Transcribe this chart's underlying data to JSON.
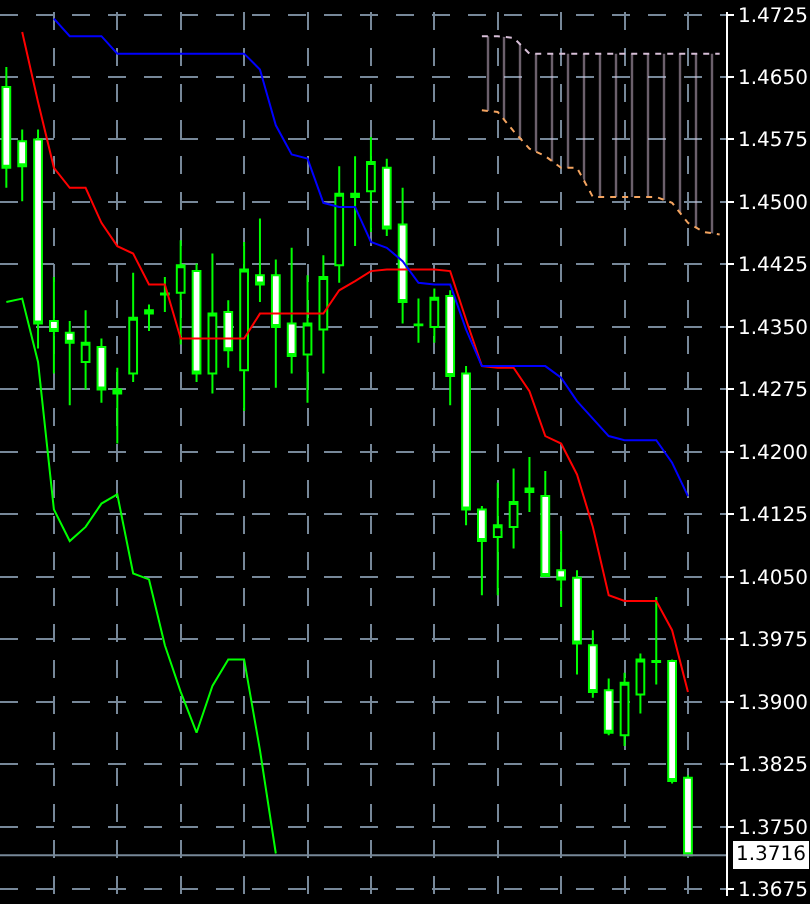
{
  "chart_data": {
    "type": "candlestick",
    "categories": [
      null,
      null,
      null,
      null,
      null,
      null,
      null,
      null,
      null,
      null,
      null,
      null,
      null,
      null,
      null,
      null,
      null,
      null,
      null,
      null,
      null,
      null,
      null,
      null,
      null,
      null,
      null,
      null,
      null,
      null,
      null,
      null,
      null,
      null,
      null,
      null,
      null,
      null,
      null,
      null,
      null,
      null,
      null,
      null,
      null,
      null
    ],
    "ohlc": [
      [
        1.4638,
        1.4662,
        1.4517,
        1.4541
      ],
      [
        1.4573,
        1.4587,
        1.4501,
        1.4543
      ],
      [
        1.4575,
        1.4587,
        1.4324,
        1.4354
      ],
      [
        1.4357,
        1.441,
        1.4294,
        1.4345
      ],
      [
        1.4343,
        1.4357,
        1.4256,
        1.4331
      ],
      [
        1.4308,
        1.437,
        1.4275,
        1.4331
      ],
      [
        1.4326,
        1.4336,
        1.4259,
        1.4275
      ],
      [
        1.4275,
        1.4301,
        1.421,
        1.427
      ],
      [
        1.4294,
        1.4415,
        1.4284,
        1.4361
      ],
      [
        1.437,
        1.4377,
        1.4345,
        1.4366
      ],
      [
        1.439,
        1.441,
        1.4368,
        1.4389
      ],
      [
        1.4391,
        1.4454,
        1.4329,
        1.4424
      ],
      [
        1.4417,
        1.4426,
        1.4284,
        1.4294
      ],
      [
        1.4294,
        1.4438,
        1.427,
        1.4366
      ],
      [
        1.4368,
        1.4382,
        1.4301,
        1.4322
      ],
      [
        1.4298,
        1.4452,
        1.4249,
        1.4419
      ],
      [
        1.4412,
        1.448,
        1.438,
        1.4401
      ],
      [
        1.4412,
        1.4431,
        1.4277,
        1.435
      ],
      [
        1.4354,
        1.4445,
        1.4294,
        1.4315
      ],
      [
        1.4317,
        1.4412,
        1.4259,
        1.4354
      ],
      [
        1.4347,
        1.4436,
        1.4294,
        1.441
      ],
      [
        1.4424,
        1.4543,
        1.4403,
        1.451
      ],
      [
        1.451,
        1.4555,
        1.4447,
        1.4506
      ],
      [
        1.4513,
        1.4578,
        1.4464,
        1.4548
      ],
      [
        1.4541,
        1.4552,
        1.4459,
        1.4468
      ],
      [
        1.4473,
        1.4517,
        1.4354,
        1.438
      ],
      [
        1.4353,
        1.4384,
        1.4331,
        1.4352
      ],
      [
        1.435,
        1.4396,
        1.4331,
        1.4385
      ],
      [
        1.4387,
        1.4394,
        1.4256,
        1.4291
      ],
      [
        1.4294,
        1.4303,
        1.4112,
        1.4131
      ],
      [
        1.4131,
        1.4135,
        1.4028,
        1.4093
      ],
      [
        1.4098,
        1.4163,
        1.4028,
        1.4112
      ],
      [
        1.411,
        1.418,
        1.4084,
        1.414
      ],
      [
        1.4156,
        1.4194,
        1.4128,
        1.4152
      ],
      [
        1.4147,
        1.4177,
        1.4051,
        1.4051
      ],
      [
        1.4058,
        1.4105,
        1.4014,
        1.4047
      ],
      [
        1.4049,
        1.4058,
        1.3933,
        1.397
      ],
      [
        1.3968,
        1.3986,
        1.3905,
        1.3912
      ],
      [
        1.3914,
        1.3928,
        1.386,
        1.3863
      ],
      [
        1.386,
        1.3935,
        1.3847,
        1.3923
      ],
      [
        1.3909,
        1.3958,
        1.3886,
        1.3951
      ],
      [
        1.3948,
        1.4026,
        1.3921,
        1.3949
      ],
      [
        1.3949,
        1.3951,
        1.3802,
        1.3805
      ],
      [
        1.3809,
        1.3812,
        1.3716,
        1.3716
      ],
      null,
      null
    ],
    "color": "#00ff00",
    "colors": [
      "#ffffff",
      "#ffffff",
      "#ffffff",
      "#ffffff",
      "#ffffff",
      "#000000",
      "#ffffff",
      "#00ff00",
      "#000000",
      "#00ff00",
      "#00ff00",
      "#000000",
      "#ffffff",
      "#000000",
      "#ffffff",
      "#000000",
      "#ffffff",
      "#ffffff",
      "#ffffff",
      "#000000",
      "#000000",
      "#000000",
      "#00ff00",
      "#000000",
      "#ffffff",
      "#ffffff",
      "#00ff00",
      "#000000",
      "#ffffff",
      "#ffffff",
      "#ffffff",
      "#000000",
      "#000000",
      "#00ff00",
      "#ffffff",
      "#ffffff",
      "#ffffff",
      "#ffffff",
      "#ffffff",
      "#000000",
      "#000000",
      "#00ff00",
      "#ffffff",
      "#ffffff",
      null,
      null
    ],
    "series": [
      {
        "type": "line",
        "color": "#ff0000",
        "values": [
          null,
          1.4704,
          1.462,
          1.4541,
          1.4517,
          1.4517,
          1.4475,
          1.4447,
          1.4438,
          1.4401,
          1.4401,
          1.4336,
          1.4336,
          1.4336,
          1.4336,
          1.4336,
          1.4366,
          1.4366,
          1.4366,
          1.4366,
          1.4366,
          1.4394,
          1.4405,
          1.4417,
          1.4419,
          1.4419,
          1.4419,
          1.4419,
          1.4417,
          1.4359,
          1.4303,
          1.4301,
          1.4301,
          1.4273,
          1.4219,
          1.421,
          1.4173,
          1.411,
          1.4028,
          1.4021,
          1.4021,
          1.4021,
          1.3986,
          1.3912,
          null,
          null
        ]
      },
      {
        "type": "line",
        "color": "#0000ff",
        "values": [
          null,
          null,
          null,
          1.472,
          1.4699,
          1.4699,
          1.4699,
          1.4678,
          1.4678,
          1.4678,
          1.4678,
          1.4678,
          1.4678,
          1.4678,
          1.4678,
          1.4678,
          1.4659,
          1.4592,
          1.4557,
          1.4552,
          1.4499,
          1.4494,
          1.4494,
          1.4452,
          1.4445,
          1.4429,
          1.4403,
          1.4401,
          1.4401,
          1.4347,
          1.4303,
          1.4303,
          1.4303,
          1.4303,
          1.4303,
          1.4289,
          1.4261,
          1.424,
          1.4219,
          1.4214,
          1.4214,
          1.4214,
          1.4187,
          1.4147,
          null,
          null
        ]
      },
      {
        "type": "line",
        "color": "#00ff00",
        "values": [
          1.438,
          1.4384,
          1.4308,
          1.4131,
          1.4093,
          1.411,
          1.4138,
          1.4149,
          1.4054,
          1.4047,
          1.3968,
          1.3912,
          1.3863,
          1.3919,
          1.3951,
          1.3951,
          1.3842,
          1.3718,
          null,
          null,
          null,
          null,
          null,
          null,
          null,
          null,
          null,
          null,
          null,
          null,
          null,
          null,
          null,
          null,
          null,
          null,
          null,
          null,
          null,
          null,
          null,
          null,
          null,
          null,
          null,
          null
        ]
      },
      {
        "type": "line",
        "color": "#d8bfd8",
        "line_style": "dotted",
        "values": [
          null,
          null,
          null,
          null,
          null,
          null,
          null,
          null,
          null,
          null,
          null,
          null,
          null,
          null,
          null,
          null,
          null,
          null,
          null,
          null,
          null,
          null,
          null,
          null,
          null,
          null,
          null,
          null,
          null,
          null,
          1.4699,
          1.4699,
          1.4697,
          1.4678,
          1.4678,
          1.4678,
          1.4678,
          1.4678,
          1.4678,
          1.4678,
          1.4678,
          1.4678,
          1.4678,
          1.4678,
          1.4678,
          1.4678
        ]
      },
      {
        "type": "line",
        "color": "#f4a460",
        "line_style": "dotted",
        "values": [
          null,
          null,
          null,
          null,
          null,
          null,
          null,
          null,
          null,
          null,
          null,
          null,
          null,
          null,
          null,
          null,
          null,
          null,
          null,
          null,
          null,
          null,
          null,
          null,
          null,
          null,
          null,
          null,
          null,
          null,
          1.461,
          1.4608,
          1.4585,
          1.4564,
          1.4555,
          1.4541,
          1.4541,
          1.4506,
          1.4506,
          1.4506,
          1.4506,
          1.4506,
          1.4499,
          1.4475,
          1.4464,
          1.4461
        ],
        "lower": [
          null,
          null,
          null,
          null,
          null,
          null,
          null,
          null,
          null,
          null,
          null,
          null,
          null,
          null,
          null,
          null,
          null,
          null,
          null,
          null,
          null,
          null,
          null,
          null,
          null,
          null,
          null,
          null,
          null,
          null,
          1.461,
          1.4608,
          1.4585,
          1.4564,
          1.4555,
          1.4541,
          1.4541,
          1.4506,
          1.4506,
          1.4506,
          1.4506,
          1.4506,
          1.4499,
          1.4475,
          1.4464,
          1.4461
        ],
        "upper": [
          null,
          null,
          null,
          null,
          null,
          null,
          null,
          null,
          null,
          null,
          null,
          null,
          null,
          null,
          null,
          null,
          null,
          null,
          null,
          null,
          null,
          null,
          null,
          null,
          null,
          null,
          null,
          null,
          null,
          null,
          1.4699,
          1.4699,
          1.4697,
          1.4678,
          1.4678,
          1.4678,
          1.4678,
          1.4678,
          1.4678,
          1.4678,
          1.4678,
          1.4678,
          1.4678,
          1.4678,
          1.4678,
          1.4678
        ]
      }
    ],
    "ylim": [
      1.3667,
      1.4728
    ],
    "yticks": [
      1.3675,
      {
        "value": 1.375,
        "label": "1.3750"
      },
      1.3825,
      {
        "value": 1.39,
        "label": "1.3900"
      },
      1.3975,
      {
        "value": 1.405,
        "label": "1.4050"
      },
      1.4125,
      {
        "value": 1.42,
        "label": "1.4200"
      },
      1.4275,
      {
        "value": 1.435,
        "label": "1.4350"
      },
      1.4425,
      {
        "value": 1.45,
        "label": "1.4500"
      },
      1.4575,
      {
        "value": 1.465,
        "label": "1.4650"
      },
      1.4725
    ],
    "ref_lines": [
      {
        "axis": "y",
        "value": 1.3716,
        "label": "1.3716",
        "color": "#778899"
      }
    ],
    "grid": true,
    "tick_labels": "y"
  }
}
